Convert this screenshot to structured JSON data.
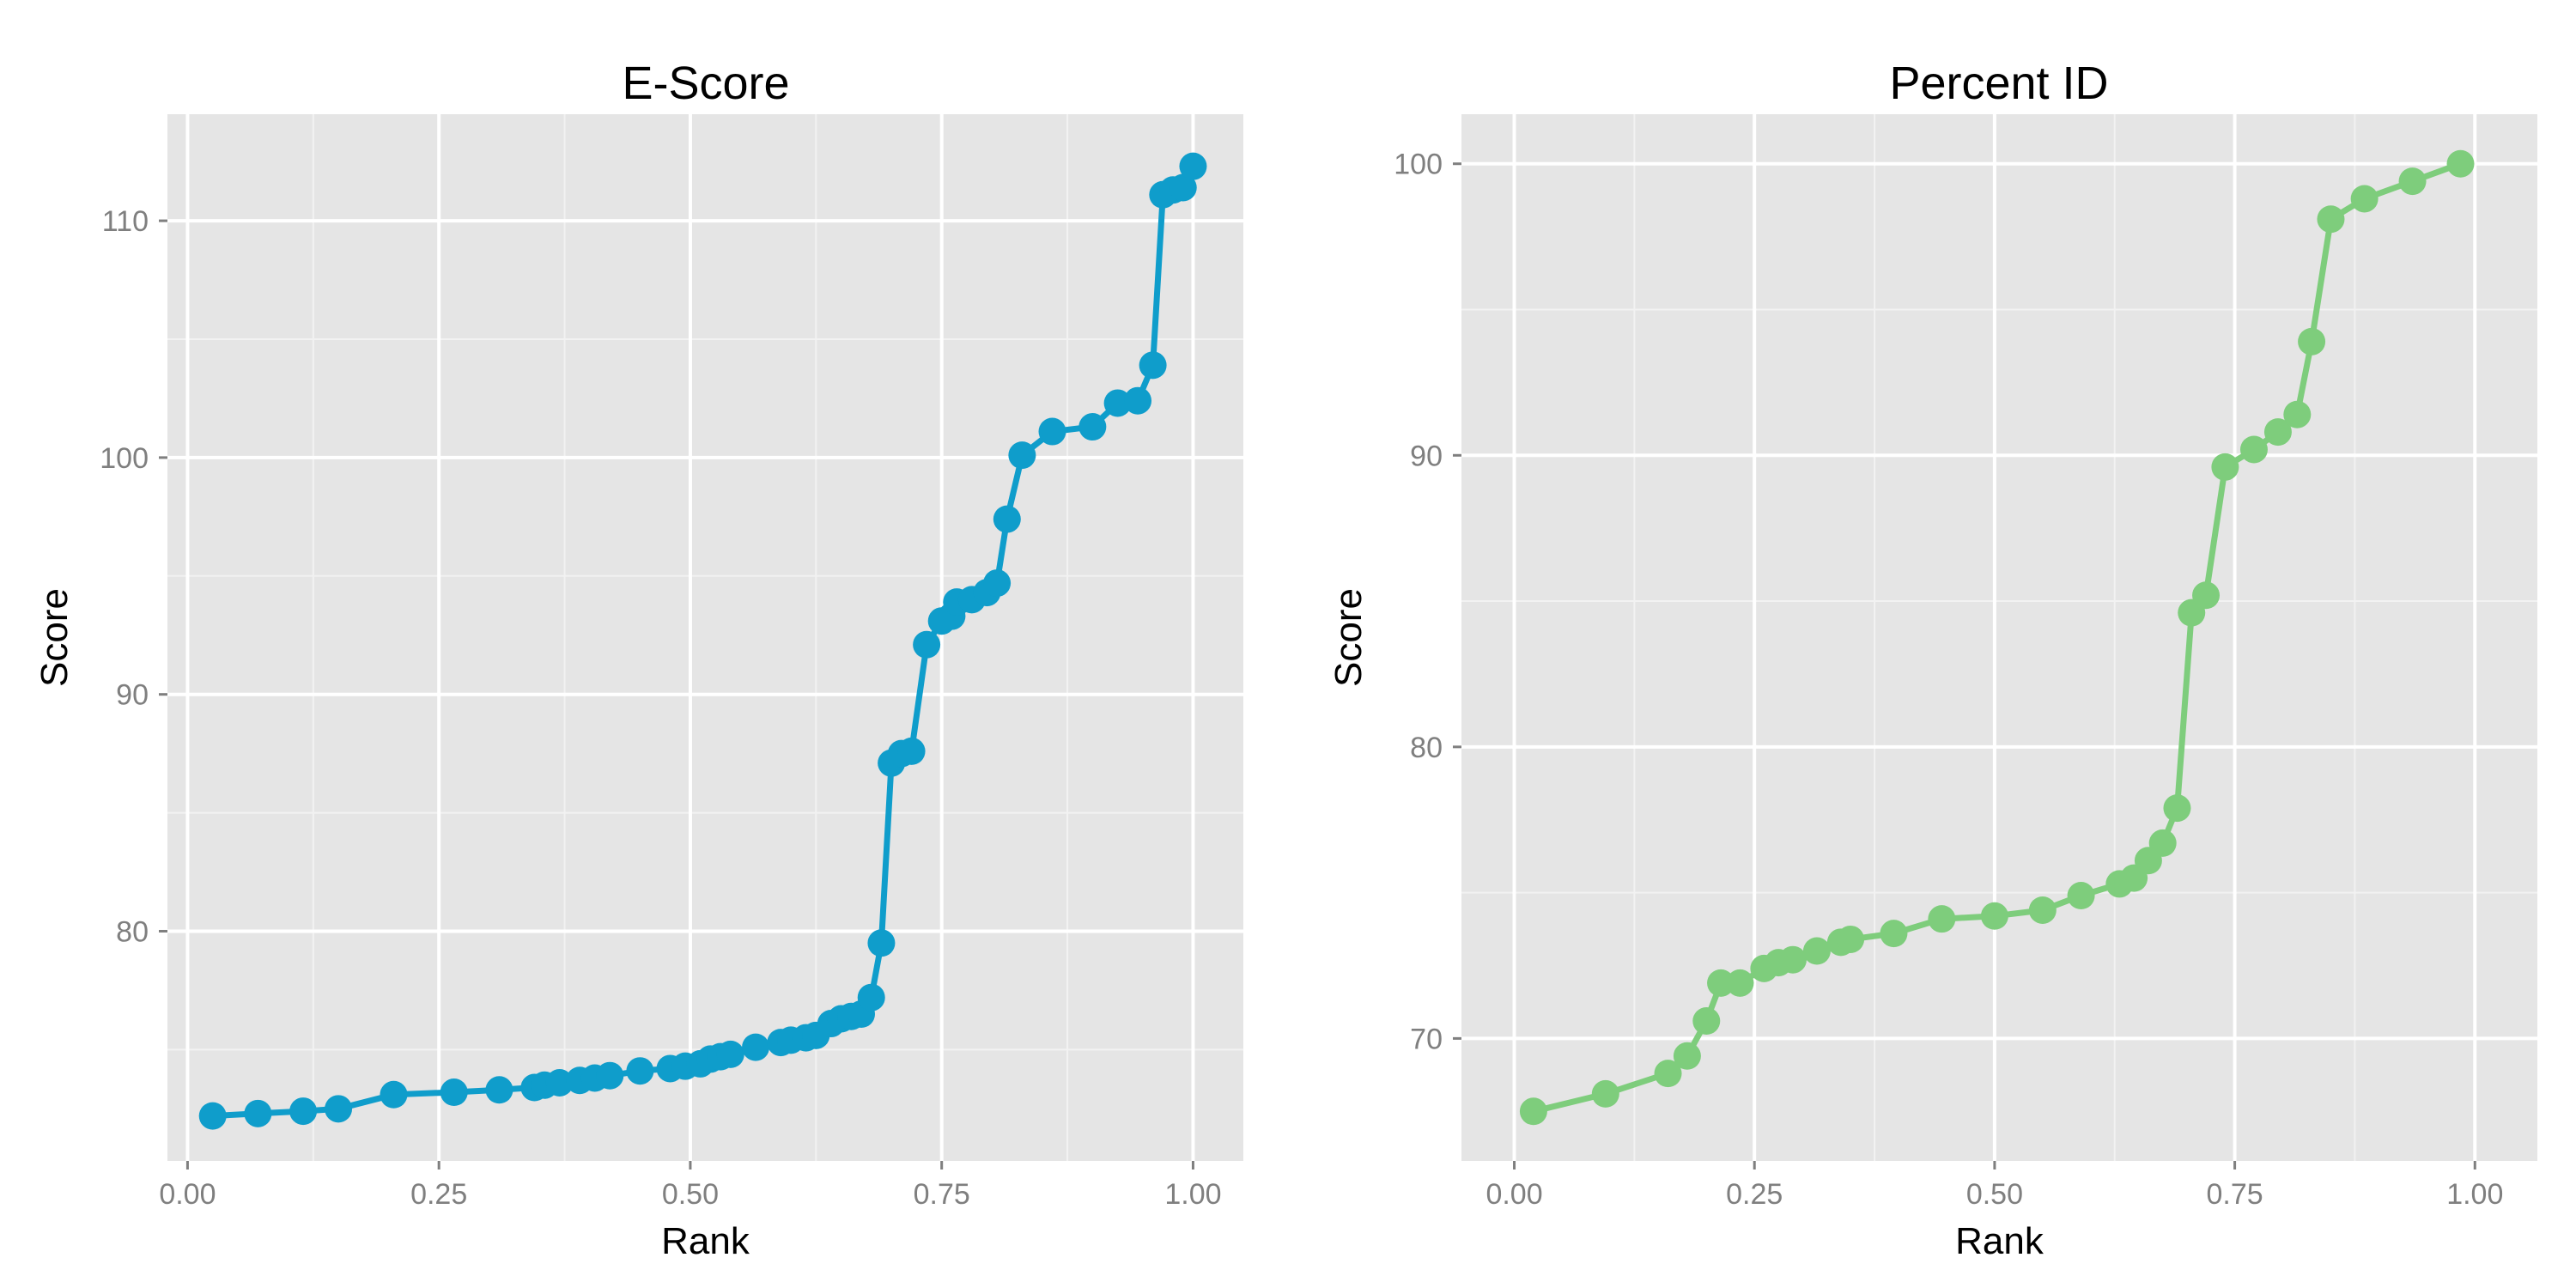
{
  "chart_data": [
    {
      "type": "line",
      "title": "E-Score",
      "xlabel": "Rank",
      "ylabel": "Score",
      "xlim": [
        -0.02,
        1.05
      ],
      "ylim": [
        70.3,
        114.5
      ],
      "xticks": [
        0,
        0.25,
        0.5,
        0.75,
        1
      ],
      "xtick_labels": [
        "0.00",
        "0.25",
        "0.50",
        "0.75",
        "1.00"
      ],
      "yticks": [
        80,
        90,
        100,
        110
      ],
      "ytick_labels": [
        "80",
        "90",
        "100",
        "110"
      ],
      "grid": true,
      "background": "panel-grey",
      "markers": true,
      "color": "#0f9dcb",
      "x": [
        0.025,
        0.07,
        0.115,
        0.15,
        0.205,
        0.265,
        0.31,
        0.345,
        0.355,
        0.37,
        0.39,
        0.405,
        0.42,
        0.45,
        0.48,
        0.495,
        0.51,
        0.52,
        0.53,
        0.54,
        0.565,
        0.59,
        0.6,
        0.615,
        0.625,
        0.64,
        0.65,
        0.66,
        0.67,
        0.68,
        0.69,
        0.7,
        0.71,
        0.72,
        0.735,
        0.75,
        0.76,
        0.765,
        0.78,
        0.795,
        0.805,
        0.815,
        0.83,
        0.86,
        0.9,
        0.925,
        0.945,
        0.96,
        0.97,
        0.98,
        0.99,
        1.0
      ],
      "y": [
        72.2,
        72.3,
        72.4,
        72.5,
        73.1,
        73.2,
        73.3,
        73.4,
        73.5,
        73.6,
        73.7,
        73.8,
        73.9,
        74.1,
        74.2,
        74.3,
        74.4,
        74.6,
        74.7,
        74.8,
        75.1,
        75.3,
        75.4,
        75.5,
        75.6,
        76.1,
        76.3,
        76.4,
        76.5,
        77.2,
        79.5,
        87.1,
        87.5,
        87.6,
        92.1,
        93.1,
        93.3,
        93.9,
        94.0,
        94.3,
        94.7,
        97.4,
        100.1,
        101.1,
        101.3,
        102.3,
        102.4,
        103.9,
        111.1,
        111.3,
        111.4,
        112.3
      ]
    },
    {
      "type": "line",
      "title": "Percent ID",
      "xlabel": "Rank",
      "ylabel": "Score",
      "xlim": [
        -0.055,
        1.065
      ],
      "ylim": [
        65.8,
        101.7
      ],
      "xticks": [
        0,
        0.25,
        0.5,
        0.75,
        1
      ],
      "xtick_labels": [
        "0.00",
        "0.25",
        "0.50",
        "0.75",
        "1.00"
      ],
      "yticks": [
        70,
        80,
        90,
        100
      ],
      "ytick_labels": [
        "70",
        "80",
        "90",
        "100"
      ],
      "grid": true,
      "background": "panel-grey",
      "markers": true,
      "color": "#7ecd7c",
      "x": [
        0.02,
        0.095,
        0.16,
        0.18,
        0.2,
        0.215,
        0.235,
        0.26,
        0.275,
        0.29,
        0.315,
        0.34,
        0.35,
        0.395,
        0.445,
        0.5,
        0.55,
        0.59,
        0.63,
        0.645,
        0.66,
        0.675,
        0.69,
        0.705,
        0.72,
        0.74,
        0.77,
        0.795,
        0.815,
        0.83,
        0.85,
        0.885,
        0.935,
        0.985
      ],
      "y": [
        67.5,
        68.1,
        68.8,
        69.4,
        70.6,
        71.9,
        71.9,
        72.4,
        72.6,
        72.7,
        73.0,
        73.3,
        73.4,
        73.6,
        74.1,
        74.2,
        74.4,
        74.9,
        75.3,
        75.5,
        76.1,
        76.7,
        77.9,
        84.6,
        85.2,
        89.6,
        90.2,
        90.8,
        91.4,
        93.9,
        98.1,
        98.8,
        99.4,
        100.0
      ]
    }
  ]
}
